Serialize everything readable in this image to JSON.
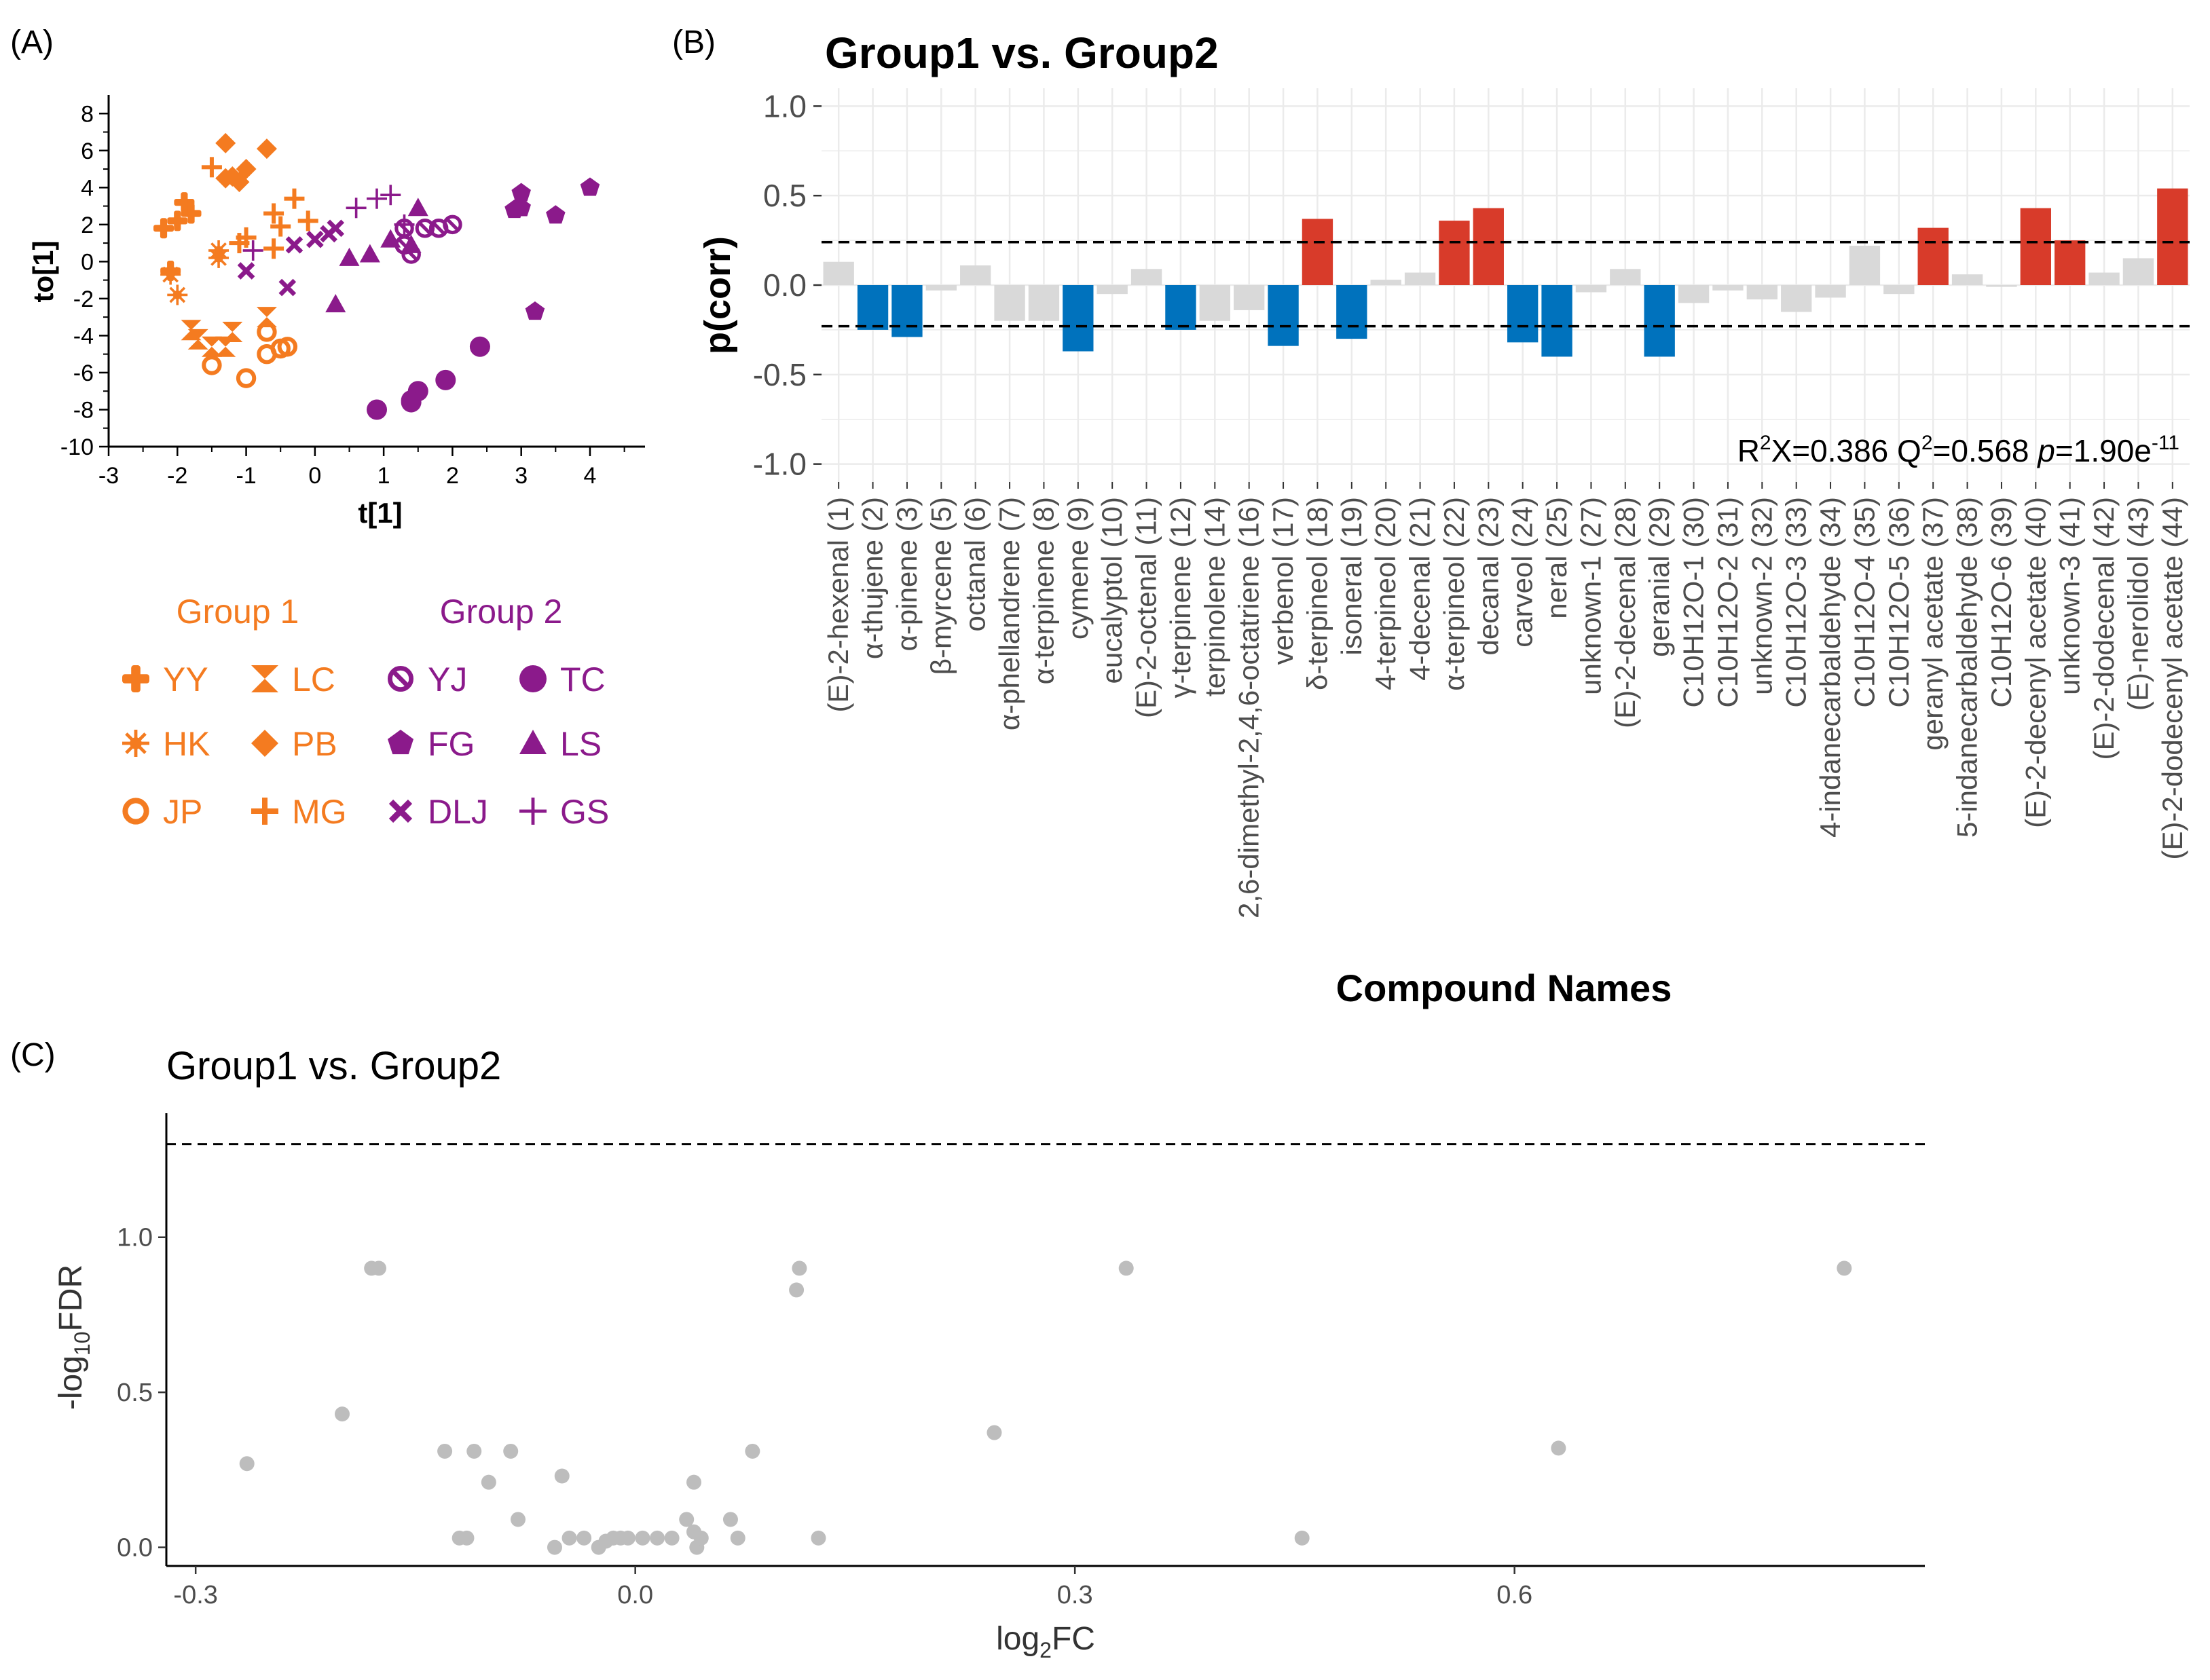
{
  "colors": {
    "group1": "#F47B20",
    "group2": "#8B1A8B",
    "negative": "#0072BD",
    "positive": "#D83B2A",
    "neutral": "#D9D9D9",
    "volcano_point": "#BDBDBD"
  },
  "panel_labels": {
    "a": "(A)",
    "b": "(B)",
    "c": "(C)"
  },
  "chart_data": [
    {
      "id": "A",
      "type": "scatter",
      "title": "",
      "xlabel": "t[1]",
      "ylabel": "to[1]",
      "xlim": [
        -3,
        4.8
      ],
      "ylim": [
        -10,
        9
      ],
      "xticks": [
        -3,
        -2,
        -1,
        0,
        1,
        2,
        3,
        4
      ],
      "yticks": [
        -10,
        -8,
        -6,
        -4,
        -2,
        0,
        2,
        4,
        6,
        8
      ],
      "legend": {
        "group1_title": "Group 1",
        "group2_title": "Group 2",
        "entries": [
          {
            "label": "YY",
            "group": 1,
            "marker": "cross"
          },
          {
            "label": "LC",
            "group": 1,
            "marker": "hourglass"
          },
          {
            "label": "YJ",
            "group": 2,
            "marker": "circle-slash"
          },
          {
            "label": "TC",
            "group": 2,
            "marker": "circle"
          },
          {
            "label": "HK",
            "group": 1,
            "marker": "star"
          },
          {
            "label": "PB",
            "group": 1,
            "marker": "diamond"
          },
          {
            "label": "FG",
            "group": 2,
            "marker": "pentagon"
          },
          {
            "label": "LS",
            "group": 2,
            "marker": "triangle"
          },
          {
            "label": "JP",
            "group": 1,
            "marker": "ring"
          },
          {
            "label": "MG",
            "group": 1,
            "marker": "plus"
          },
          {
            "label": "DLJ",
            "group": 2,
            "marker": "x"
          },
          {
            "label": "GS",
            "group": 2,
            "marker": "thin-plus"
          }
        ]
      },
      "series": [
        {
          "name": "YY",
          "group": 1,
          "marker": "cross",
          "points": [
            [
              -2.2,
              1.8
            ],
            [
              -2.0,
              2.2
            ],
            [
              -1.9,
              3.2
            ],
            [
              -1.8,
              2.6
            ],
            [
              -2.1,
              -0.5
            ]
          ]
        },
        {
          "name": "HK",
          "group": 1,
          "marker": "star",
          "points": [
            [
              -1.4,
              0.6
            ],
            [
              -1.4,
              0.2
            ],
            [
              -2.0,
              -1.8
            ],
            [
              -2.1,
              -0.7
            ]
          ]
        },
        {
          "name": "JP",
          "group": 1,
          "marker": "ring",
          "points": [
            [
              -1.5,
              -5.6
            ],
            [
              -1.0,
              -6.3
            ],
            [
              -0.7,
              -3.8
            ],
            [
              -0.7,
              -5.0
            ],
            [
              -0.5,
              -4.7
            ],
            [
              -0.4,
              -4.6
            ]
          ]
        },
        {
          "name": "LC",
          "group": 1,
          "marker": "hourglass",
          "points": [
            [
              -1.8,
              -3.7
            ],
            [
              -1.7,
              -4.2
            ],
            [
              -1.5,
              -4.6
            ],
            [
              -1.3,
              -4.6
            ],
            [
              -1.2,
              -3.8
            ],
            [
              -0.7,
              -3.0
            ]
          ]
        },
        {
          "name": "PB",
          "group": 1,
          "marker": "diamond",
          "points": [
            [
              -1.3,
              6.4
            ],
            [
              -0.7,
              6.1
            ],
            [
              -1.1,
              4.3
            ],
            [
              -1.2,
              4.6
            ],
            [
              -1.0,
              5.0
            ],
            [
              -1.3,
              4.5
            ]
          ]
        },
        {
          "name": "MG",
          "group": 1,
          "marker": "plus",
          "points": [
            [
              -1.5,
              5.1
            ],
            [
              -1.1,
              1.0
            ],
            [
              -1.0,
              1.3
            ],
            [
              -0.6,
              2.6
            ],
            [
              -0.5,
              1.9
            ],
            [
              -0.3,
              3.4
            ],
            [
              -0.1,
              2.2
            ],
            [
              -0.6,
              0.7
            ]
          ]
        },
        {
          "name": "YJ",
          "group": 2,
          "marker": "circle-slash",
          "points": [
            [
              1.3,
              1.8
            ],
            [
              1.3,
              0.9
            ],
            [
              1.4,
              0.4
            ],
            [
              1.6,
              1.8
            ],
            [
              1.8,
              1.8
            ],
            [
              2.0,
              2.0
            ]
          ]
        },
        {
          "name": "FG",
          "group": 2,
          "marker": "pentagon",
          "points": [
            [
              3.0,
              3.7
            ],
            [
              3.0,
              2.9
            ],
            [
              2.9,
              2.8
            ],
            [
              3.5,
              2.5
            ],
            [
              4.0,
              4.0
            ],
            [
              3.2,
              -2.7
            ]
          ]
        },
        {
          "name": "DLJ",
          "group": 2,
          "marker": "x",
          "points": [
            [
              -1.0,
              -0.5
            ],
            [
              -0.3,
              0.9
            ],
            [
              -0.4,
              -1.4
            ],
            [
              0.0,
              1.2
            ],
            [
              0.2,
              1.5
            ],
            [
              0.3,
              1.8
            ]
          ]
        },
        {
          "name": "TC",
          "group": 2,
          "marker": "circle",
          "points": [
            [
              0.9,
              -8.0
            ],
            [
              1.4,
              -7.5
            ],
            [
              1.5,
              -7.0
            ],
            [
              1.9,
              -6.4
            ],
            [
              2.4,
              -4.6
            ],
            [
              1.4,
              -7.6
            ]
          ]
        },
        {
          "name": "LS",
          "group": 2,
          "marker": "triangle",
          "points": [
            [
              0.5,
              0.2
            ],
            [
              0.8,
              0.4
            ],
            [
              1.1,
              1.2
            ],
            [
              1.5,
              2.9
            ],
            [
              1.4,
              0.9
            ],
            [
              0.3,
              -2.3
            ]
          ]
        },
        {
          "name": "GS",
          "group": 2,
          "marker": "thin-plus",
          "points": [
            [
              -0.9,
              0.6
            ],
            [
              0.6,
              2.9
            ],
            [
              1.1,
              3.6
            ],
            [
              0.9,
              3.4
            ],
            [
              1.3,
              2.0
            ]
          ]
        }
      ]
    },
    {
      "id": "B",
      "type": "bar",
      "title": "Group1 vs. Group2",
      "xlabel": "Compound Names",
      "ylabel": "p(corr)",
      "ylim": [
        -1.1,
        1.1
      ],
      "yticks": [
        -1.0,
        -0.5,
        0.0,
        0.5,
        1.0
      ],
      "ytick_labels": [
        "-1.0",
        "-0.5",
        "0.0",
        "0.5",
        "1.0"
      ],
      "thresholds": [
        0.24,
        -0.23
      ],
      "annotation": {
        "r2x_label": "R",
        "r2x_sup": "2",
        "r2x_val": "X=0.386 Q",
        "q2_sup": "2",
        "q2_val": "=0.568 ",
        "p_label": "p",
        "p_val": "=1.90e",
        "p_sup": "-11"
      },
      "categories": [
        "(E)-2-hexenal  (1)",
        "α-thujene (2)",
        "α-pinene (3)",
        "β-myrcene (5)",
        "octanal (6)",
        "α-phellandrene (7)",
        "α-terpinene (8)",
        "cymene (9)",
        "eucalyptol (10)",
        "(E)-2-octenal (11)",
        "γ-terpinene (12)",
        "terpinolene (14)",
        "2,6-dimethyl-2,4,6-octatriene (16)",
        "verbenol (17)",
        "δ-terpineol (18)",
        "isoneral (19)",
        "4-terpineol (20)",
        "4-decenal (21)",
        "α-terpineol (22)",
        "decanal (23)",
        "carveol (24)",
        "neral (25)",
        "unknown-1 (27)",
        "(E)-2-decenal (28)",
        "geranial (29)",
        "C10H12O-1 (30)",
        "C10H12O-2 (31)",
        "unknown-2 (32)",
        "C10H12O-3 (33)",
        "4-indanecarbaldehyde (34)",
        "C10H12O-4 (35)",
        "C10H12O-5 (36)",
        "geranyl acetate (37)",
        "5-indanecarbaldehyde (38)",
        "C10H12O-6 (39)",
        "(E)-2-decenyl acetate (40)",
        "unknown-3 (41)",
        "(E)-2-dodecenal (42)",
        "(E)-nerolidol (43)",
        "(E)-2-dodecenyl acetate (44)"
      ],
      "values": [
        0.13,
        -0.25,
        -0.29,
        -0.03,
        0.11,
        -0.2,
        -0.2,
        -0.37,
        -0.05,
        0.09,
        -0.25,
        -0.2,
        -0.14,
        -0.34,
        0.37,
        -0.3,
        0.03,
        0.07,
        0.36,
        0.43,
        -0.32,
        -0.4,
        -0.04,
        0.09,
        -0.4,
        -0.1,
        -0.03,
        -0.08,
        -0.15,
        -0.07,
        0.22,
        -0.05,
        0.32,
        0.06,
        -0.01,
        0.43,
        0.25,
        0.07,
        0.15,
        0.54
      ]
    },
    {
      "id": "C",
      "type": "scatter",
      "title": "Group1 vs. Group2",
      "xlabel_main": "log",
      "xlabel_sub": "2",
      "xlabel_tail": "FC",
      "ylabel_pre": "-log",
      "ylabel_sub": "10",
      "ylabel_tail": "FDR",
      "xlim": [
        -0.32,
        0.88
      ],
      "ylim": [
        -0.06,
        1.4
      ],
      "xticks": [
        -0.3,
        0.0,
        0.3,
        0.6
      ],
      "xtick_labels": [
        "-0.3",
        "0.0",
        "0.3",
        "0.6"
      ],
      "yticks": [
        0.0,
        0.5,
        1.0
      ],
      "ytick_labels": [
        "0.0",
        "0.5",
        "1.0"
      ],
      "threshold": 1.3,
      "points": [
        [
          -0.18,
          0.9
        ],
        [
          -0.175,
          0.9
        ],
        [
          -0.2,
          0.43
        ],
        [
          -0.265,
          0.27
        ],
        [
          -0.13,
          0.31
        ],
        [
          -0.11,
          0.31
        ],
        [
          -0.1,
          0.21
        ],
        [
          -0.085,
          0.31
        ],
        [
          -0.08,
          0.09
        ],
        [
          -0.05,
          0.23
        ],
        [
          -0.115,
          0.03
        ],
        [
          -0.12,
          0.03
        ],
        [
          -0.055,
          0.0
        ],
        [
          -0.045,
          0.03
        ],
        [
          -0.035,
          0.03
        ],
        [
          -0.025,
          0.0
        ],
        [
          -0.02,
          0.02
        ],
        [
          -0.015,
          0.03
        ],
        [
          -0.01,
          0.03
        ],
        [
          -0.005,
          0.03
        ],
        [
          0.005,
          0.03
        ],
        [
          0.015,
          0.03
        ],
        [
          0.025,
          0.03
        ],
        [
          0.035,
          0.09
        ],
        [
          0.04,
          0.21
        ],
        [
          0.04,
          0.05
        ],
        [
          0.042,
          0.0
        ],
        [
          0.045,
          0.03
        ],
        [
          0.065,
          0.09
        ],
        [
          0.07,
          0.03
        ],
        [
          0.08,
          0.31
        ],
        [
          0.11,
          0.83
        ],
        [
          0.112,
          0.9
        ],
        [
          0.125,
          0.03
        ],
        [
          0.245,
          0.37
        ],
        [
          0.335,
          0.9
        ],
        [
          0.455,
          0.03
        ],
        [
          0.63,
          0.32
        ],
        [
          0.825,
          0.9
        ]
      ]
    }
  ]
}
